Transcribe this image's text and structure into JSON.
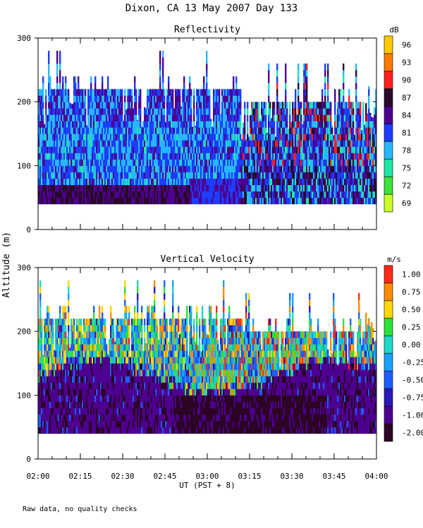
{
  "figure": {
    "title": "Dixon, CA 13 May 2007  Day 133",
    "shared_ylabel": "Altitude (m)",
    "xlabel": "UT  (PST + 8)",
    "footnote": "Raw data, no quality checks"
  },
  "chart_data": [
    {
      "type": "heatmap",
      "title": "Reflectivity",
      "xlabel": "UT  (PST + 8)",
      "ylabel": "Altitude (m)",
      "x_ticks": [
        "02:00",
        "02:15",
        "02:30",
        "02:45",
        "03:00",
        "03:15",
        "03:30",
        "03:45",
        "04:00"
      ],
      "x_range_hours": [
        2.0,
        4.0
      ],
      "y_ticks": [
        0,
        100,
        200,
        300
      ],
      "ylim": [
        0,
        300
      ],
      "data_bottom_m": 40,
      "colorbar": {
        "unit": "dB",
        "levels": [
          69,
          72,
          75,
          78,
          81,
          84,
          87,
          90,
          93,
          96
        ],
        "colors": [
          "#c8ff2a",
          "#3de23a",
          "#1fe7a6",
          "#27b7ff",
          "#1d3cff",
          "#4d0090",
          "#2a0a2a",
          "#ff1e1e",
          "#ff7a00",
          "#ffc800"
        ]
      },
      "description_rows": "Dominant values 78-84 dB in lower 200 m; pockets 87-90 dB after 03:15; near-surface layer 84-87 dB before 02:45"
    },
    {
      "type": "heatmap",
      "title": "Vertical Velocity",
      "xlabel": "UT  (PST + 8)",
      "ylabel": "Altitude (m)",
      "x_ticks": [
        "02:00",
        "02:15",
        "02:30",
        "02:45",
        "03:00",
        "03:15",
        "03:30",
        "03:45",
        "04:00"
      ],
      "x_range_hours": [
        2.0,
        4.0
      ],
      "y_ticks": [
        0,
        100,
        200,
        300
      ],
      "ylim": [
        0,
        300
      ],
      "data_bottom_m": 40,
      "colorbar": {
        "unit": "m/s",
        "levels": [
          -2.0,
          -1.0,
          -0.75,
          -0.5,
          -0.25,
          0.0,
          0.25,
          0.5,
          0.75,
          1.0
        ],
        "level_labels": [
          "-2.00",
          "-1.00",
          "-0.75",
          "-0.50",
          "-0.25",
          "0.00",
          "0.25",
          "0.50",
          "0.75",
          "1.00"
        ],
        "colors": [
          "#2c0424",
          "#4d0090",
          "#2a1ab8",
          "#1d5cff",
          "#1aa0ff",
          "#1fd7c8",
          "#2ee03a",
          "#ffd700",
          "#ff8c00",
          "#ff2a1a"
        ]
      },
      "description_rows": "Below ~130 m mostly -1.00 to -2.00 m/s; above ~130 m mixed -0.25 to 0.75 m/s updrafts, strongest after 03:00"
    }
  ]
}
